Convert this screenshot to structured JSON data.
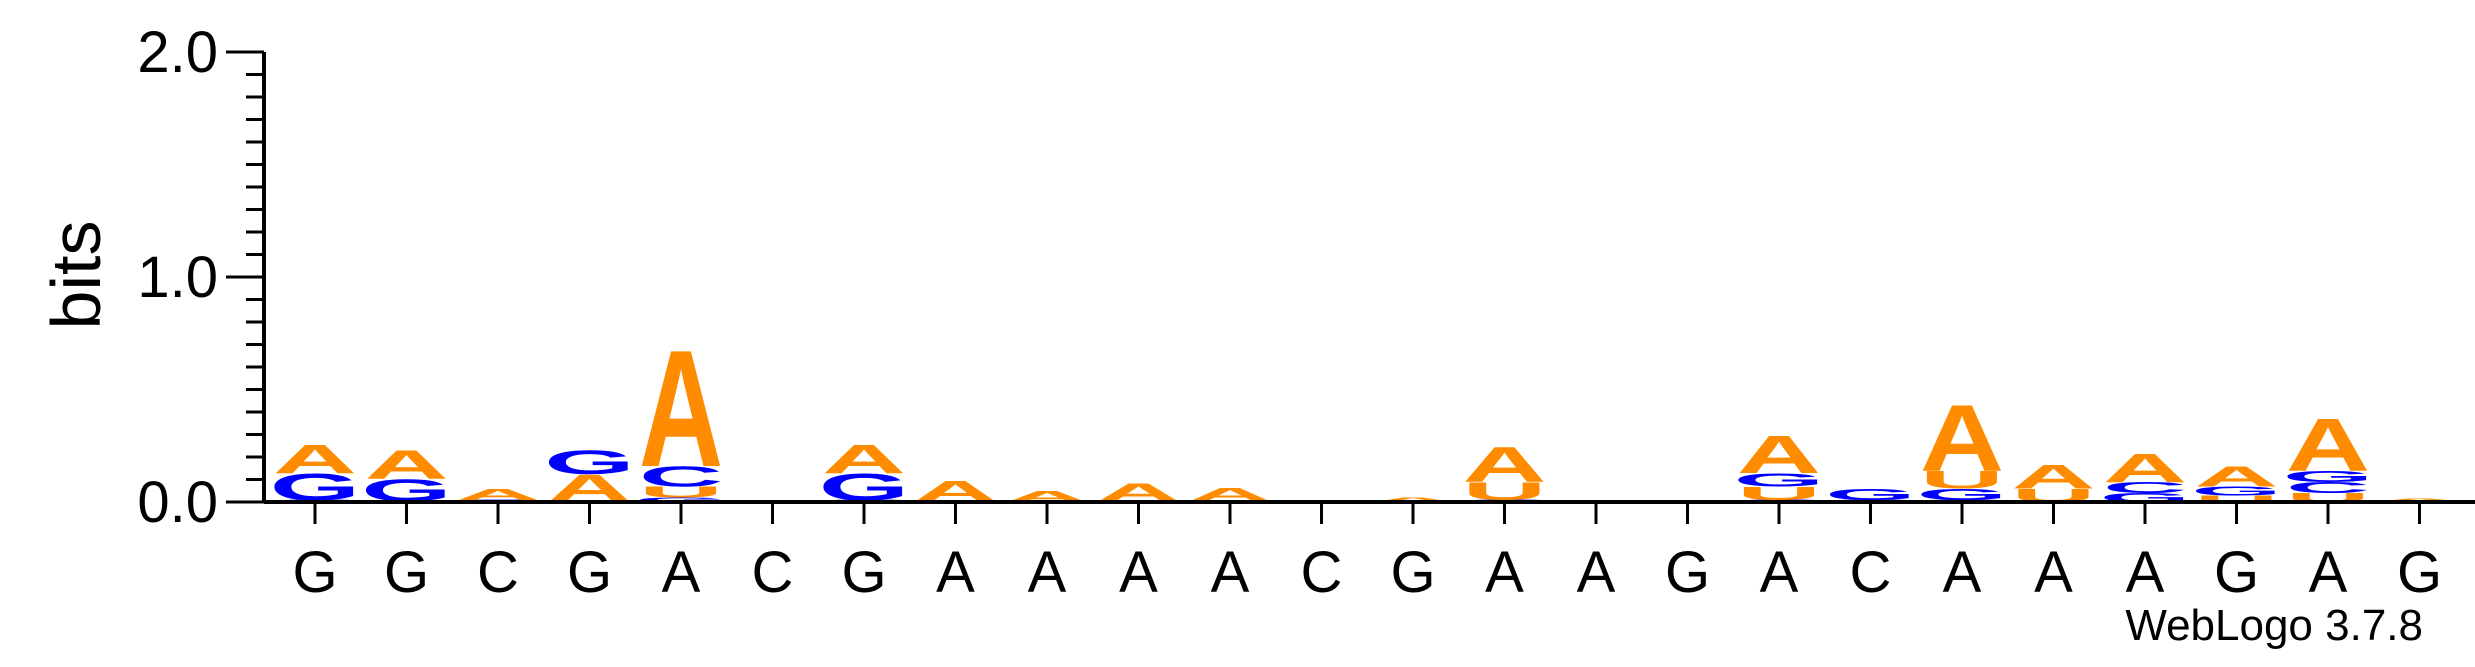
{
  "chart_data": {
    "type": "sequence-logo",
    "ylabel": "bits",
    "ylim": [
      0,
      2.0
    ],
    "yticks": [
      "0.0",
      "1.0",
      "2.0"
    ],
    "colors": {
      "A": "#ff8c00",
      "C": "#0000ff",
      "G": "#0000ff",
      "U": "#ff8c00"
    },
    "positions": [
      {
        "label": "G",
        "stack": [
          {
            "l": "C",
            "h": 0.01
          },
          {
            "l": "G",
            "h": 0.12
          },
          {
            "l": "A",
            "h": 0.13
          }
        ]
      },
      {
        "label": "G",
        "stack": [
          {
            "l": "C",
            "h": 0.005
          },
          {
            "l": "G",
            "h": 0.1
          },
          {
            "l": "A",
            "h": 0.13
          }
        ]
      },
      {
        "label": "C",
        "stack": [
          {
            "l": "C",
            "h": 0.01
          },
          {
            "l": "A",
            "h": 0.05
          }
        ]
      },
      {
        "label": "G",
        "stack": [
          {
            "l": "C",
            "h": 0.005
          },
          {
            "l": "A",
            "h": 0.12
          },
          {
            "l": "G",
            "h": 0.11
          }
        ]
      },
      {
        "label": "A",
        "stack": [
          {
            "l": "G",
            "h": 0.02
          },
          {
            "l": "U",
            "h": 0.05
          },
          {
            "l": "C",
            "h": 0.09
          },
          {
            "l": "A",
            "h": 0.53
          }
        ]
      },
      {
        "label": "C",
        "stack": []
      },
      {
        "label": "G",
        "stack": [
          {
            "l": "C",
            "h": 0.01
          },
          {
            "l": "G",
            "h": 0.12
          },
          {
            "l": "A",
            "h": 0.13
          }
        ]
      },
      {
        "label": "A",
        "stack": [
          {
            "l": "C",
            "h": 0.005
          },
          {
            "l": "A",
            "h": 0.09
          }
        ]
      },
      {
        "label": "A",
        "stack": [
          {
            "l": "A",
            "h": 0.05
          }
        ]
      },
      {
        "label": "A",
        "stack": [
          {
            "l": "C",
            "h": 0.005
          },
          {
            "l": "A",
            "h": 0.08
          }
        ]
      },
      {
        "label": "A",
        "stack": [
          {
            "l": "C",
            "h": 0.005
          },
          {
            "l": "A",
            "h": 0.06
          }
        ]
      },
      {
        "label": "C",
        "stack": [
          {
            "l": "C",
            "h": 0.005
          }
        ]
      },
      {
        "label": "G",
        "stack": [
          {
            "l": "A",
            "h": 0.02
          }
        ]
      },
      {
        "label": "A",
        "stack": [
          {
            "l": "C",
            "h": 0.01
          },
          {
            "l": "U",
            "h": 0.08
          },
          {
            "l": "A",
            "h": 0.16
          }
        ]
      },
      {
        "label": "A",
        "stack": []
      },
      {
        "label": "G",
        "stack": []
      },
      {
        "label": "A",
        "stack": [
          {
            "l": "C",
            "h": 0.01
          },
          {
            "l": "U",
            "h": 0.06
          },
          {
            "l": "G",
            "h": 0.06
          },
          {
            "l": "A",
            "h": 0.17
          }
        ]
      },
      {
        "label": "C",
        "stack": [
          {
            "l": "C",
            "h": 0.01
          },
          {
            "l": "G",
            "h": 0.05
          }
        ]
      },
      {
        "label": "A",
        "stack": [
          {
            "l": "C",
            "h": 0.01
          },
          {
            "l": "G",
            "h": 0.05
          },
          {
            "l": "U",
            "h": 0.08
          },
          {
            "l": "A",
            "h": 0.3
          }
        ]
      },
      {
        "label": "A",
        "stack": [
          {
            "l": "U",
            "h": 0.06
          },
          {
            "l": "A",
            "h": 0.11
          }
        ]
      },
      {
        "label": "A",
        "stack": [
          {
            "l": "G",
            "h": 0.04
          },
          {
            "l": "C",
            "h": 0.05
          },
          {
            "l": "A",
            "h": 0.13
          }
        ]
      },
      {
        "label": "G",
        "stack": [
          {
            "l": "U",
            "h": 0.03
          },
          {
            "l": "G",
            "h": 0.04
          },
          {
            "l": "A",
            "h": 0.09
          }
        ]
      },
      {
        "label": "A",
        "stack": [
          {
            "l": "U",
            "h": 0.04
          },
          {
            "l": "C",
            "h": 0.05
          },
          {
            "l": "G",
            "h": 0.05
          },
          {
            "l": "A",
            "h": 0.24
          }
        ]
      },
      {
        "label": "G",
        "stack": [
          {
            "l": "C",
            "h": 0.005
          },
          {
            "l": "A",
            "h": 0.01
          }
        ]
      }
    ]
  },
  "credit": "WebLogo 3.7.8"
}
